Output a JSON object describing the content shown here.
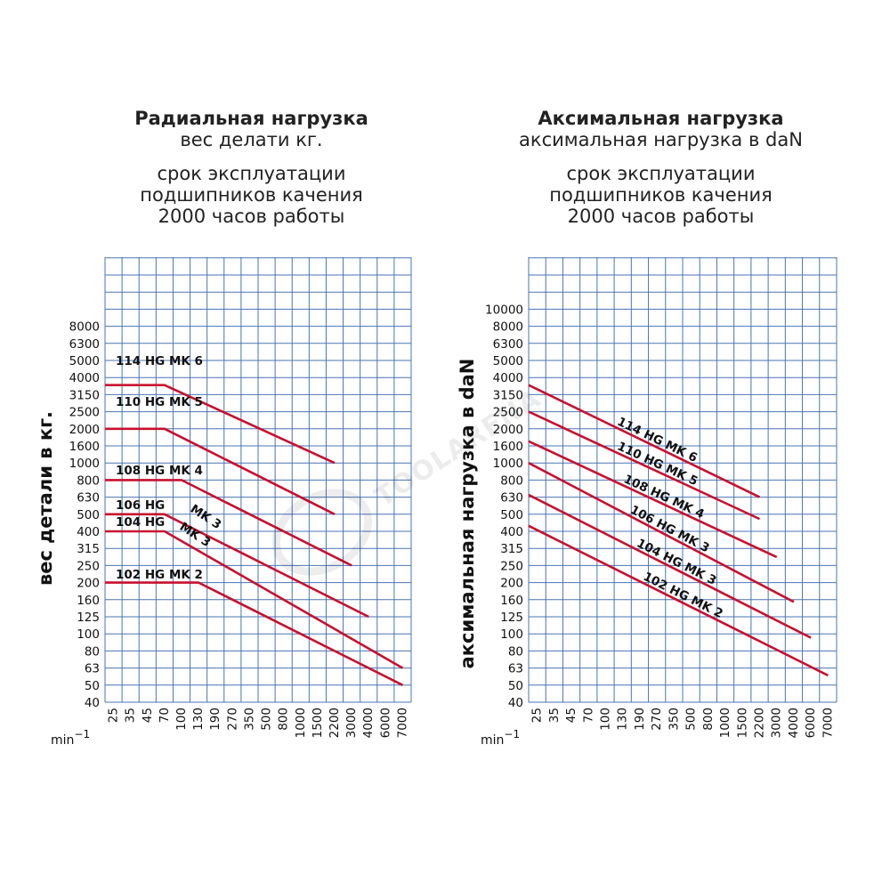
{
  "left_title": {
    "heading": "Радиальная нагрузка",
    "sub": "вес делати кг.",
    "line1": "срок эксплуатации",
    "line2": "подшипников качения",
    "line3": "2000 часов работы"
  },
  "right_title": {
    "heading": "Аксимальная нагрузка",
    "sub": "аксимальная нагрузка в daN",
    "line1": "срок эксплуатации",
    "line2": "подшипников качения",
    "line3": "2000 часов работы"
  },
  "watermark": "TOOLARENA",
  "colors": {
    "series": "#c8102e",
    "grid": "#4a74b4"
  },
  "chart_data": [
    {
      "type": "line",
      "ylabel": "вес детали в кг.",
      "xunit": "min",
      "xunit_sup": "−1",
      "yticks": [
        "8000",
        "6300",
        "5000",
        "4000",
        "3150",
        "2500",
        "2000",
        "1600",
        "1000",
        "800",
        "630",
        "500",
        "400",
        "315",
        "250",
        "200",
        "160",
        "125",
        "100",
        "80",
        "63",
        "50",
        "40"
      ],
      "xticks": [
        "25",
        "35",
        "45",
        "70",
        "100",
        "130",
        "190",
        "270",
        "350",
        "500",
        "800",
        "1000",
        "1500",
        "2200",
        "3000",
        "4000",
        "6000",
        "7000"
      ],
      "series": [
        {
          "name": "114 HG MK 6",
          "points": [
            [
              "25",
              "3600"
            ],
            [
              "70",
              "3600"
            ],
            [
              "2200",
              "1000"
            ]
          ]
        },
        {
          "name": "110 HG MK 5",
          "points": [
            [
              "25",
              "2000"
            ],
            [
              "70",
              "2000"
            ],
            [
              "2200",
              "500"
            ]
          ]
        },
        {
          "name": "108 HG MK 4",
          "points": [
            [
              "25",
              "800"
            ],
            [
              "100",
              "800"
            ],
            [
              "3000",
              "250"
            ]
          ]
        },
        {
          "name": "106 HG MK 3",
          "points": [
            [
              "25",
              "500"
            ],
            [
              "70",
              "500"
            ],
            [
              "4000",
              "125"
            ]
          ]
        },
        {
          "name": "104 HG MK 3",
          "points": [
            [
              "25",
              "400"
            ],
            [
              "70",
              "400"
            ],
            [
              "7000",
              "63"
            ]
          ]
        },
        {
          "name": "102 HG MK 2",
          "points": [
            [
              "25",
              "200"
            ],
            [
              "130",
              "200"
            ],
            [
              "7000",
              "50"
            ]
          ]
        }
      ]
    },
    {
      "type": "line",
      "ylabel": "аксимальная нагрузка в daN",
      "xunit": "min",
      "xunit_sup": "−1",
      "yticks": [
        "10000",
        "8000",
        "6300",
        "5000",
        "4000",
        "3150",
        "2500",
        "2000",
        "1600",
        "1000",
        "800",
        "630",
        "500",
        "400",
        "315",
        "250",
        "200",
        "160",
        "125",
        "100",
        "80",
        "63",
        "50",
        "40"
      ],
      "xticks": [
        "25",
        "35",
        "45",
        "70",
        "100",
        "130",
        "190",
        "270",
        "350",
        "500",
        "800",
        "1000",
        "1500",
        "2200",
        "3000",
        "4000",
        "6000",
        "7000"
      ],
      "series": [
        {
          "name": "114 HG MK 6",
          "points": [
            [
              "25",
              "3600"
            ],
            [
              "2200",
              "630"
            ]
          ]
        },
        {
          "name": "110 HG MK 5",
          "points": [
            [
              "25",
              "2500"
            ],
            [
              "2200",
              "470"
            ]
          ]
        },
        {
          "name": "108 HG MK 4",
          "points": [
            [
              "25",
              "1700"
            ],
            [
              "3000",
              "280"
            ]
          ]
        },
        {
          "name": "106 HG MK 3",
          "points": [
            [
              "25",
              "1000"
            ],
            [
              "4000",
              "155"
            ]
          ]
        },
        {
          "name": "104 HG MK 3",
          "points": [
            [
              "25",
              "650"
            ],
            [
              "6000",
              "95"
            ]
          ]
        },
        {
          "name": "102 HG MK 2",
          "points": [
            [
              "25",
              "430"
            ],
            [
              "7000",
              "57"
            ]
          ]
        }
      ]
    }
  ]
}
